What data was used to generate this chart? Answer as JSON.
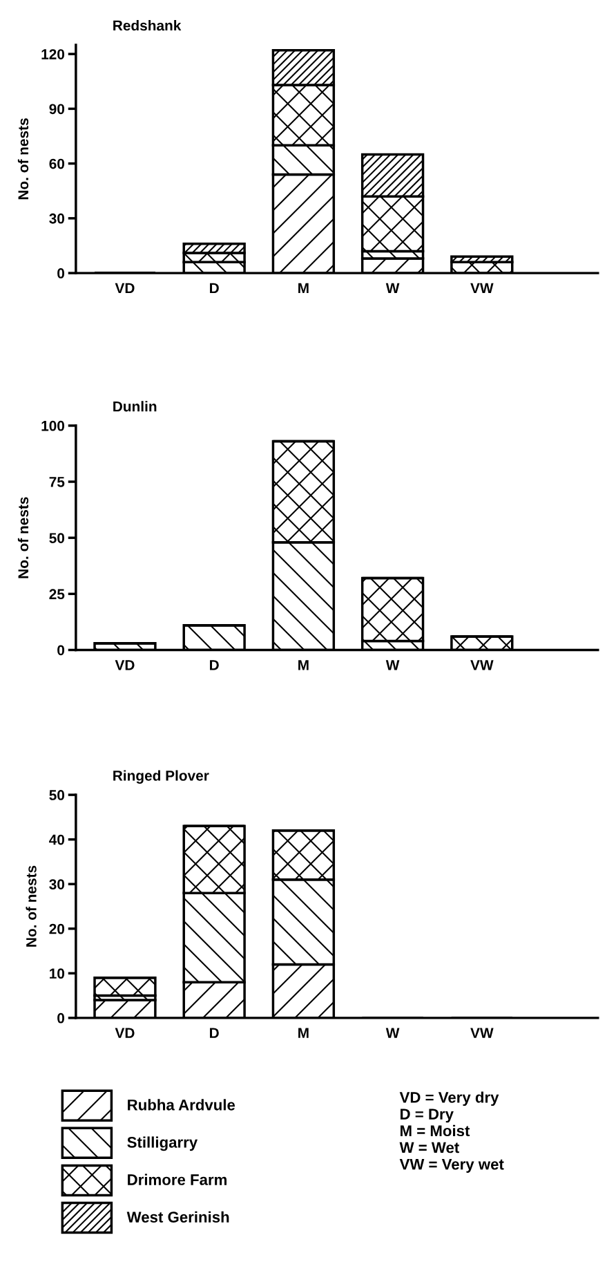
{
  "chart_data": [
    {
      "type": "bar",
      "stacked": true,
      "title": "Redshank",
      "ylabel": "No. of nests",
      "categories": [
        "VD",
        "D",
        "M",
        "W",
        "VW"
      ],
      "ylim": [
        0,
        125
      ],
      "yticks": [
        0,
        30,
        60,
        90,
        120
      ],
      "legend": "bottom left",
      "series": [
        {
          "name": "Rubha Ardvule",
          "color": "#000000",
          "values": [
            0,
            0,
            54,
            8,
            0
          ]
        },
        {
          "name": "Stilligarry",
          "color": "#000000",
          "values": [
            0,
            6,
            16,
            4,
            0
          ]
        },
        {
          "name": "Drimore Farm",
          "color": "#000000",
          "values": [
            0,
            5,
            33,
            30,
            6
          ]
        },
        {
          "name": "West Gerinish",
          "color": "#000000",
          "values": [
            0,
            5,
            19,
            23,
            3
          ]
        }
      ]
    },
    {
      "type": "bar",
      "stacked": true,
      "title": "Dunlin",
      "ylabel": "No. of nests",
      "categories": [
        "VD",
        "D",
        "M",
        "W",
        "VW"
      ],
      "ylim": [
        0,
        100
      ],
      "yticks": [
        0,
        25,
        50,
        75,
        100
      ],
      "series": [
        {
          "color": "#000000",
          "values": [
            0,
            0,
            0,
            0,
            0
          ]
        },
        {
          "color": "#000000",
          "values": [
            3,
            11,
            48,
            4,
            0
          ]
        },
        {
          "color": "#000000",
          "values": [
            0,
            0,
            45,
            28,
            6
          ]
        },
        {
          "color": "#000000",
          "values": [
            0,
            0,
            0,
            0,
            0
          ]
        }
      ]
    },
    {
      "type": "bar",
      "stacked": true,
      "title": "Ringed Plover",
      "ylabel": "No. of nests",
      "categories": [
        "VD",
        "D",
        "M",
        "W",
        "VW"
      ],
      "ylim": [
        0,
        50
      ],
      "yticks": [
        0,
        10,
        20,
        30,
        40,
        50
      ],
      "annotations": [
        "VD = Very dry",
        "D = Dry",
        "M = Moist",
        "W = Wet",
        "VW = Very wet"
      ],
      "series": [
        {
          "color": "#000000",
          "values": [
            4,
            8,
            12,
            0,
            0
          ]
        },
        {
          "color": "#000000",
          "values": [
            1,
            20,
            19,
            0,
            0
          ]
        },
        {
          "color": "#000000",
          "values": [
            4,
            15,
            11,
            0,
            0
          ]
        },
        {
          "color": "#000000",
          "values": [
            0,
            0,
            0,
            0,
            0
          ]
        }
      ]
    }
  ]
}
